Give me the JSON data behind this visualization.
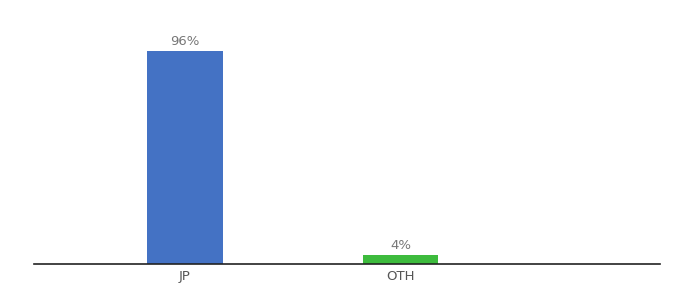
{
  "categories": [
    "JP",
    "OTH"
  ],
  "values": [
    96,
    4
  ],
  "bar_colors": [
    "#4472c4",
    "#3dbb3d"
  ],
  "label_texts": [
    "96%",
    "4%"
  ],
  "ylim": [
    0,
    108
  ],
  "background_color": "#ffffff",
  "bar_width": 0.35,
  "tick_fontsize": 9.5,
  "label_fontsize": 9.5,
  "label_color": "#777777",
  "x_positions": [
    1,
    2
  ],
  "xlim": [
    0.3,
    3.2
  ]
}
